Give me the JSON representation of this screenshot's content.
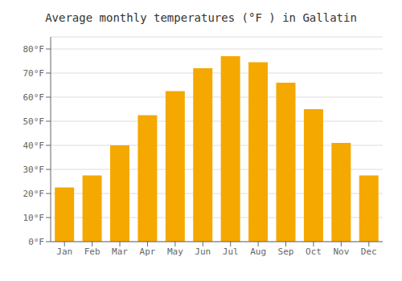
{
  "chart_data": {
    "type": "bar",
    "title": "Average monthly temperatures (°F ) in Gallatin",
    "categories": [
      "Jan",
      "Feb",
      "Mar",
      "Apr",
      "May",
      "Jun",
      "Jul",
      "Aug",
      "Sep",
      "Oct",
      "Nov",
      "Dec"
    ],
    "values": [
      22.5,
      27.5,
      40.0,
      52.5,
      62.5,
      72.0,
      77.0,
      74.5,
      66.0,
      55.0,
      41.0,
      27.5
    ],
    "color": "#F5A800",
    "ylim": [
      0,
      85
    ],
    "yticks": [
      {
        "value": 0,
        "label": "0°F"
      },
      {
        "value": 10,
        "label": "10°F"
      },
      {
        "value": 20,
        "label": "20°F"
      },
      {
        "value": 30,
        "label": "30°F"
      },
      {
        "value": 40,
        "label": "40°F"
      },
      {
        "value": 50,
        "label": "50°F"
      },
      {
        "value": 60,
        "label": "60°F"
      },
      {
        "value": 70,
        "label": "70°F"
      },
      {
        "value": 80,
        "label": "80°F"
      }
    ],
    "grid": true
  }
}
